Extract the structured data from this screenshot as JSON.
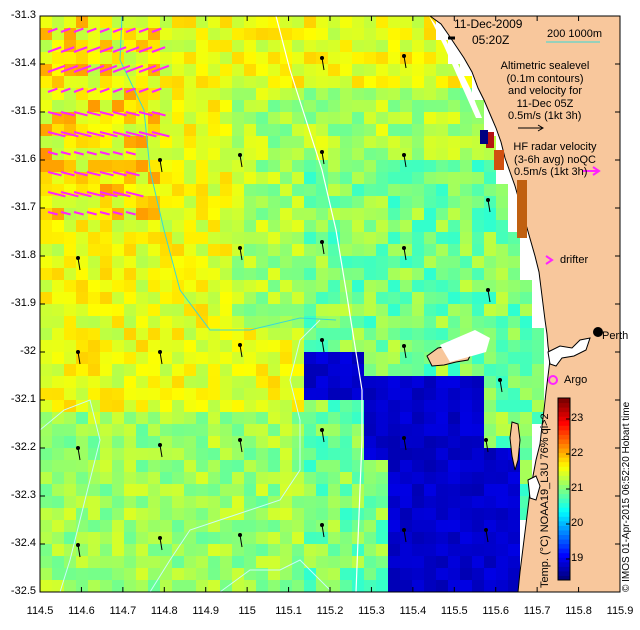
{
  "header": {
    "date": "11-Dec-2009",
    "time": "05:20Z",
    "scale_label": "200  1000m"
  },
  "legend": {
    "altimetric_lines": [
      "Altimetric sealevel",
      "(0.1m contours)",
      "and velocity for",
      "11-Dec 05Z"
    ],
    "altimetric_scale": "0.5m/s (1kt 3h)",
    "hf_lines": [
      "HF radar velocity",
      "(3-6h avg) noQC"
    ],
    "hf_scale": "0.5m/s (1kt 3h)",
    "drifter": "drifter",
    "argo": "Argo",
    "perth": "Perth"
  },
  "axes": {
    "x_ticks": [
      "114.5",
      "114.6",
      "114.7",
      "114.8",
      "114.9",
      "115",
      "115.1",
      "115.2",
      "115.3",
      "115.4",
      "115.5",
      "115.6",
      "115.7",
      "115.8",
      "115.9"
    ],
    "y_ticks": [
      "-31.3",
      "-31.4",
      "-31.5",
      "-31.6",
      "-31.7",
      "-31.8",
      "-31.9",
      "-32",
      "-32.1",
      "-32.2",
      "-32.3",
      "-32.4",
      "-32.5"
    ],
    "lon_range": [
      114.5,
      115.9
    ],
    "lat_range": [
      -32.5,
      -31.3
    ]
  },
  "colorbar": {
    "ticks": [
      "23",
      "22",
      "21",
      "20",
      "19"
    ],
    "value_range": [
      18.4,
      23.6
    ],
    "label": "Temp. (°C) NOAA19_L3U 76% qi>2"
  },
  "credit": "© IMOS 01-Apr-2015 06:52:20 Hobart time",
  "colors": {
    "land": "#f8c79c",
    "hf_arrows": "#ff22ff",
    "contours": "#c8fcfc",
    "isobath": "#ffffff",
    "sst_warm": "#22cc22",
    "sst_cool": "#00008e"
  }
}
